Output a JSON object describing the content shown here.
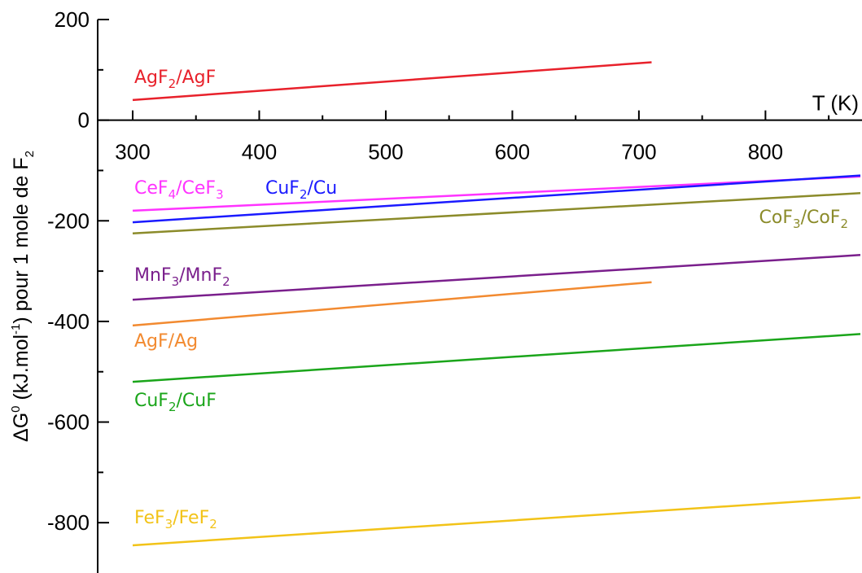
{
  "chart_data": {
    "type": "line",
    "title": "",
    "xlabel": "T (K)",
    "ylabel": "ΔG0 (kJ.mol-1) pour 1 mole de F2",
    "xlim": [
      300,
      875
    ],
    "ylim": [
      -900,
      200
    ],
    "xticks": [
      300,
      400,
      500,
      600,
      700,
      800
    ],
    "yticks": [
      200,
      0,
      -200,
      -400,
      -600,
      -800
    ],
    "grid": false,
    "x_axis_position": "y = 0",
    "series": [
      {
        "name": "AgF2/AgF",
        "color": "#e8212b",
        "x": [
          300,
          710
        ],
        "y": [
          40,
          115
        ]
      },
      {
        "name": "CeF4/CeF3",
        "color": "#ff33ff",
        "x": [
          300,
          875
        ],
        "y": [
          -180,
          -112
        ]
      },
      {
        "name": "CuF2/Cu",
        "color": "#1a1aff",
        "x": [
          300,
          875
        ],
        "y": [
          -203,
          -110
        ]
      },
      {
        "name": "CoF3/CoF2",
        "color": "#8b8b2a",
        "x": [
          300,
          875
        ],
        "y": [
          -225,
          -145
        ]
      },
      {
        "name": "MnF3/MnF2",
        "color": "#7a1f8c",
        "x": [
          300,
          875
        ],
        "y": [
          -357,
          -268
        ]
      },
      {
        "name": "AgF/Ag",
        "color": "#f28a30",
        "x": [
          300,
          710
        ],
        "y": [
          -408,
          -322
        ]
      },
      {
        "name": "CuF2/CuF",
        "color": "#1aa51a",
        "x": [
          300,
          875
        ],
        "y": [
          -520,
          -425
        ]
      },
      {
        "name": "FeF3/FeF2",
        "color": "#f2c318",
        "x": [
          300,
          875
        ],
        "y": [
          -845,
          -750
        ]
      }
    ]
  },
  "labels": {
    "ylabel": {
      "main": "ΔG",
      "sup1": "0",
      "mid": " (kJ.mol",
      "sup2": "-1",
      "end": ") pour 1 mole de F",
      "sub": "2"
    },
    "xlabel": "T (K)",
    "series": [
      {
        "parts": [
          "AgF",
          "2",
          "/AgF"
        ],
        "color": "#e8212b"
      },
      {
        "parts": [
          "CeF",
          "4",
          "/CeF",
          "3"
        ],
        "color": "#ff33ff"
      },
      {
        "parts": [
          "CuF",
          "2",
          "/Cu"
        ],
        "color": "#1a1aff"
      },
      {
        "parts": [
          "CoF",
          "3",
          "/CoF",
          "2"
        ],
        "color": "#8b8b2a"
      },
      {
        "parts": [
          "MnF",
          "3",
          "/MnF",
          "2"
        ],
        "color": "#7a1f8c"
      },
      {
        "parts": [
          "AgF/Ag"
        ],
        "color": "#f28a30"
      },
      {
        "parts": [
          "CuF",
          "2",
          "/CuF"
        ],
        "color": "#1aa51a"
      },
      {
        "parts": [
          "FeF",
          "3",
          "/FeF",
          "2"
        ],
        "color": "#f2c318"
      }
    ]
  }
}
